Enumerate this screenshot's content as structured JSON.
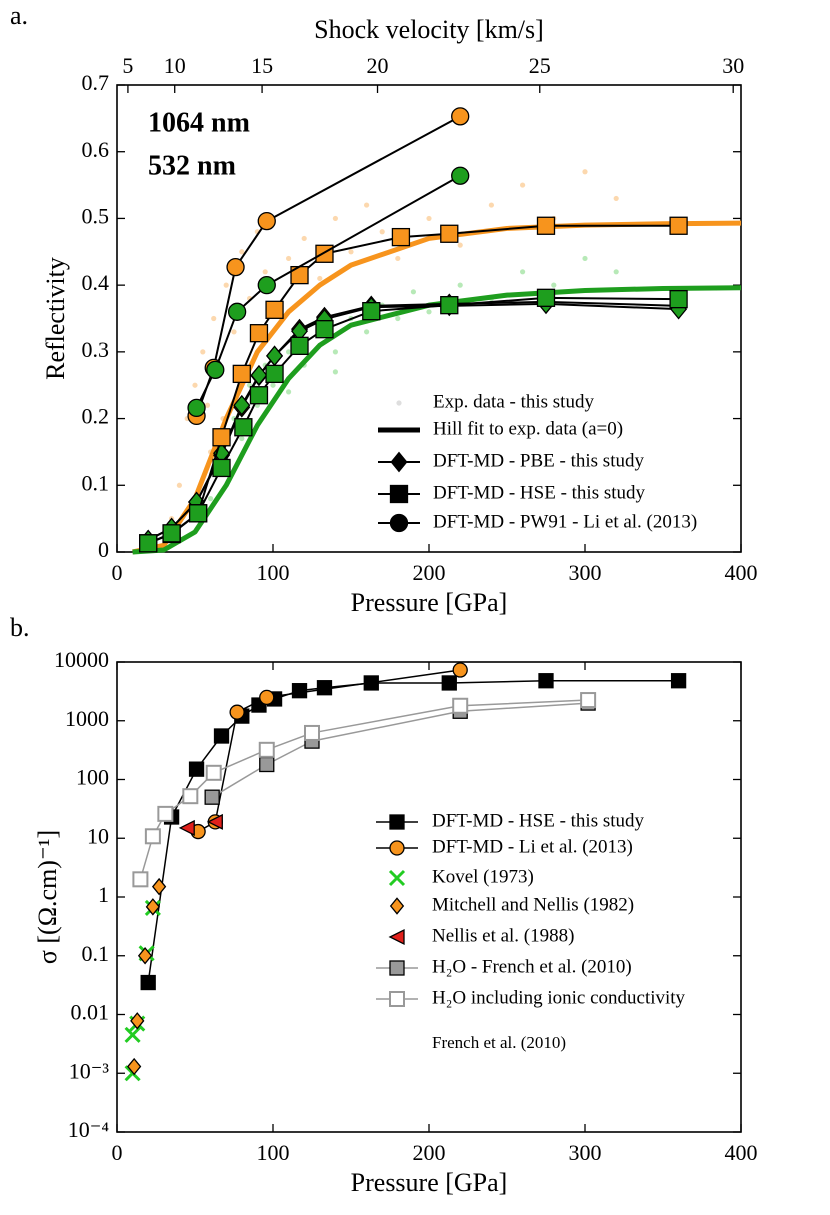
{
  "chart_data": [
    {
      "type": "line",
      "panel_label": "a.",
      "x2label": "Shock velocity [km/s]",
      "xlabel": "Pressure [GPa]",
      "ylabel": "Reflectivity",
      "xlim": [
        0,
        400
      ],
      "xticks": [
        0,
        100,
        200,
        300,
        400
      ],
      "x2ticks": [
        {
          "value": 7,
          "label": "5"
        },
        {
          "value": 37,
          "label": "10"
        },
        {
          "value": 93,
          "label": "15"
        },
        {
          "value": 167,
          "label": "20"
        },
        {
          "value": 271,
          "label": "25"
        },
        {
          "value": 395,
          "label": "30"
        }
      ],
      "ylim": [
        0,
        0.7
      ],
      "yticks": [
        0,
        0.1,
        0.2,
        0.3,
        0.4,
        0.5,
        0.6,
        0.7
      ],
      "annotations": [
        {
          "text": "1064 nm",
          "color": "#f7941d"
        },
        {
          "text": "532 nm",
          "color": "#1e9e1e"
        }
      ],
      "legend": "lower right",
      "series": [
        {
          "name": "Exp. data - this study",
          "marker": "dot",
          "color": "#b5b5b5",
          "line": false,
          "groups": [
            {
              "color": "#f9a94b",
              "x": [
                35,
                40,
                45,
                50,
                55,
                58,
                60,
                62,
                65,
                68,
                70,
                75,
                80,
                85,
                90,
                95,
                100,
                110,
                120,
                130,
                140,
                150,
                160,
                170,
                180,
                200,
                220,
                240,
                260,
                280,
                300,
                320
              ],
              "values": [
                0.05,
                0.1,
                0.2,
                0.25,
                0.3,
                0.22,
                0.15,
                0.35,
                0.28,
                0.2,
                0.4,
                0.33,
                0.45,
                0.38,
                0.48,
                0.42,
                0.5,
                0.44,
                0.47,
                0.41,
                0.5,
                0.45,
                0.52,
                0.48,
                0.44,
                0.5,
                0.46,
                0.52,
                0.55,
                0.5,
                0.57,
                0.53
              ]
            },
            {
              "color": "#5fcf5f",
              "x": [
                40,
                50,
                60,
                65,
                70,
                75,
                80,
                85,
                90,
                95,
                100,
                110,
                110,
                120,
                130,
                140,
                140,
                150,
                160,
                170,
                180,
                190,
                200,
                220,
                240,
                260,
                280,
                300,
                320
              ],
              "values": [
                0.02,
                0.05,
                0.08,
                0.12,
                0.15,
                0.2,
                0.17,
                0.25,
                0.22,
                0.28,
                0.25,
                0.3,
                0.24,
                0.28,
                0.33,
                0.3,
                0.27,
                0.35,
                0.33,
                0.37,
                0.35,
                0.39,
                0.36,
                0.4,
                0.38,
                0.42,
                0.4,
                0.44,
                0.42
              ]
            }
          ]
        },
        {
          "name": "Hill fit to exp. data (a=0)",
          "marker": "none",
          "color": "#000000",
          "line": true,
          "line_width": 5,
          "groups": [
            {
              "color": "#f7941d",
              "x": [
                10,
                30,
                50,
                70,
                90,
                110,
                130,
                150,
                200,
                250,
                300,
                350,
                400
              ],
              "values": [
                0,
                0.01,
                0.08,
                0.2,
                0.3,
                0.36,
                0.4,
                0.43,
                0.47,
                0.485,
                0.49,
                0.492,
                0.493
              ]
            },
            {
              "color": "#1e9e1e",
              "x": [
                10,
                30,
                50,
                70,
                90,
                110,
                130,
                150,
                200,
                250,
                300,
                350,
                400
              ],
              "values": [
                0,
                0.003,
                0.03,
                0.1,
                0.19,
                0.26,
                0.31,
                0.34,
                0.37,
                0.385,
                0.392,
                0.395,
                0.396
              ]
            }
          ]
        },
        {
          "name": "DFT-MD - PBE - this study",
          "marker": "diamond",
          "color": "#000000",
          "line": true,
          "line_color": "#000000",
          "line_width": 2,
          "groups": [
            {
              "color": "#f7941d",
              "x": [
                20,
                35,
                51,
                67,
                80,
                91,
                101,
                117,
                133,
                163,
                213,
                275,
                360
              ],
              "values": [
                0.018,
                0.036,
                0.075,
                0.145,
                0.217,
                0.264,
                0.294,
                0.334,
                0.352,
                0.369,
                0.372,
                0.375,
                0.369
              ]
            },
            {
              "color": "#1e9e1e",
              "x": [
                20,
                35,
                51,
                67,
                80,
                91,
                101,
                117,
                133,
                163,
                213,
                275,
                360
              ],
              "values": [
                0.018,
                0.036,
                0.075,
                0.148,
                0.22,
                0.265,
                0.294,
                0.331,
                0.349,
                0.367,
                0.369,
                0.372,
                0.364
              ]
            }
          ]
        },
        {
          "name": "DFT-MD - HSE - this study",
          "marker": "square",
          "color": "#000000",
          "line": true,
          "line_color": "#000000",
          "line_width": 2,
          "groups": [
            {
              "color": "#f7941d",
              "x": [
                20,
                35,
                52,
                67,
                80,
                91,
                101,
                117,
                133,
                182,
                213,
                275,
                360
              ],
              "values": [
                0.013,
                0.027,
                0.058,
                0.172,
                0.267,
                0.328,
                0.363,
                0.415,
                0.447,
                0.472,
                0.477,
                0.489,
                0.489
              ]
            },
            {
              "color": "#1e9e1e",
              "x": [
                20,
                35,
                52,
                67,
                81,
                91,
                101,
                117,
                133,
                163,
                213,
                275,
                360
              ],
              "values": [
                0.013,
                0.028,
                0.058,
                0.126,
                0.187,
                0.235,
                0.267,
                0.309,
                0.334,
                0.361,
                0.37,
                0.381,
                0.379
              ]
            }
          ]
        },
        {
          "name": "DFT-MD - PW91 - Li et al. (2013)",
          "marker": "circle",
          "color": "#000000",
          "line": true,
          "line_color": "#000000",
          "line_width": 2,
          "groups": [
            {
              "color": "#f7941d",
              "x": [
                51,
                62,
                76,
                96,
                220
              ],
              "values": [
                0.204,
                0.276,
                0.427,
                0.496,
                0.653
              ]
            },
            {
              "color": "#1e9e1e",
              "x": [
                51,
                63,
                77,
                96,
                220
              ],
              "values": [
                0.216,
                0.273,
                0.36,
                0.4,
                0.564
              ]
            }
          ]
        }
      ]
    },
    {
      "type": "line",
      "panel_label": "b.",
      "xlabel": "Pressure [GPa]",
      "ylabel": "σ [(Ω.cm)⁻¹]",
      "log_y": true,
      "xlim": [
        0,
        400
      ],
      "xticks": [
        0,
        100,
        200,
        300,
        400
      ],
      "ylim": [
        0.0001,
        10000
      ],
      "yticks": [
        {
          "value": 0.0001,
          "label": "10⁻⁴"
        },
        {
          "value": 0.001,
          "label": "10⁻³"
        },
        0.01,
        0.1,
        1,
        10,
        100,
        1000,
        10000
      ],
      "legend": "center right",
      "series": [
        {
          "name": "DFT-MD - HSE - this study",
          "marker": "square",
          "color": "#000000",
          "line": true,
          "line_color": "#000000",
          "line_width": 1.5,
          "x": [
            20,
            35,
            51,
            67,
            80,
            91,
            101,
            117,
            133,
            163,
            213,
            275,
            360
          ],
          "values": [
            0.035,
            23,
            150,
            550,
            1200,
            1850,
            2350,
            3250,
            3650,
            4400,
            4400,
            4800,
            4800
          ]
        },
        {
          "name": "DFT-MD - Li et al. (2013)",
          "marker": "circle",
          "color": "#f7941d",
          "line": true,
          "line_color": "#000000",
          "line_width": 1.5,
          "x": [
            52,
            63,
            77,
            96,
            220
          ],
          "values": [
            13,
            19,
            1400,
            2500,
            7300
          ]
        },
        {
          "name": "Kovel (1973)",
          "marker": "x",
          "color": "#22cc22",
          "line": false,
          "x": [
            10,
            10,
            13,
            19,
            23
          ],
          "values": [
            0.0045,
            0.001,
            0.007,
            0.11,
            0.65
          ]
        },
        {
          "name": "Mitchell and Nellis (1982)",
          "marker": "diamond",
          "color": "#f7941d",
          "line": false,
          "x": [
            11,
            13,
            18,
            23,
            27
          ],
          "values": [
            0.0013,
            0.0078,
            0.1,
            0.68,
            1.5
          ]
        },
        {
          "name": "Nellis et al. (1988)",
          "marker": "triangle-left",
          "color": "#e0201b",
          "line": false,
          "x": [
            45,
            63
          ],
          "values": [
            15,
            19
          ]
        },
        {
          "name": "H₂O - French et al. (2010)",
          "marker": "square",
          "color": "#999999",
          "line": true,
          "line_color": "#999999",
          "line_width": 1.5,
          "x": [
            61,
            96,
            125,
            220,
            302
          ],
          "values": [
            50,
            180,
            450,
            1450,
            2000
          ]
        },
        {
          "name": "H₂O including ionic conductivity",
          "legend_note": "French et al. (2010)",
          "marker": "open-square",
          "color": "#999999",
          "line": true,
          "line_color": "#999999",
          "line_width": 1.5,
          "x": [
            15,
            23,
            31,
            47,
            62,
            96,
            125,
            220,
            302
          ],
          "values": [
            2,
            10.8,
            26,
            52,
            130,
            320,
            620,
            1800,
            2250
          ]
        }
      ]
    }
  ]
}
